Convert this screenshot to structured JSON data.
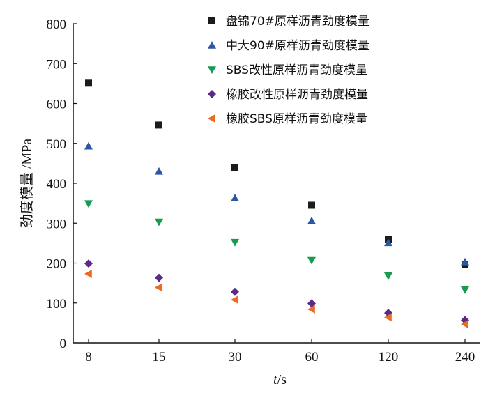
{
  "chart_data": {
    "type": "scatter",
    "categories": [
      "8",
      "15",
      "30",
      "60",
      "120",
      "240"
    ],
    "xlabel_italic": "t",
    "xlabel_unit": "/s",
    "ylabel": "劲度模量 /MPa",
    "ylim": [
      0,
      800
    ],
    "yticks": [
      "0",
      "100",
      "200",
      "300",
      "400",
      "500",
      "600",
      "700",
      "800"
    ],
    "grid": false,
    "legend_position": "top-right",
    "series": [
      {
        "name": "盘锦70#原样沥青劲度模量",
        "marker": "square",
        "color": "#1c1c1c",
        "values": [
          651,
          546,
          440,
          345,
          259,
          196
        ]
      },
      {
        "name": "中大90#原样沥青劲度模量",
        "marker": "triangle-up",
        "color": "#2b57a6",
        "values": [
          493,
          430,
          363,
          306,
          251,
          203
        ]
      },
      {
        "name": "SBS改性原样沥青劲度模量",
        "marker": "triangle-down",
        "color": "#159c4f",
        "values": [
          349,
          303,
          252,
          207,
          168,
          133
        ]
      },
      {
        "name": "橡胶改性原样沥青劲度模量",
        "marker": "diamond",
        "color": "#5a2a86",
        "values": [
          199,
          163,
          128,
          99,
          75,
          57
        ]
      },
      {
        "name": "橡胶SBS原样沥青劲度模量",
        "marker": "triangle-left",
        "color": "#ee6a22",
        "values": [
          173,
          139,
          108,
          84,
          64,
          47
        ]
      }
    ]
  }
}
